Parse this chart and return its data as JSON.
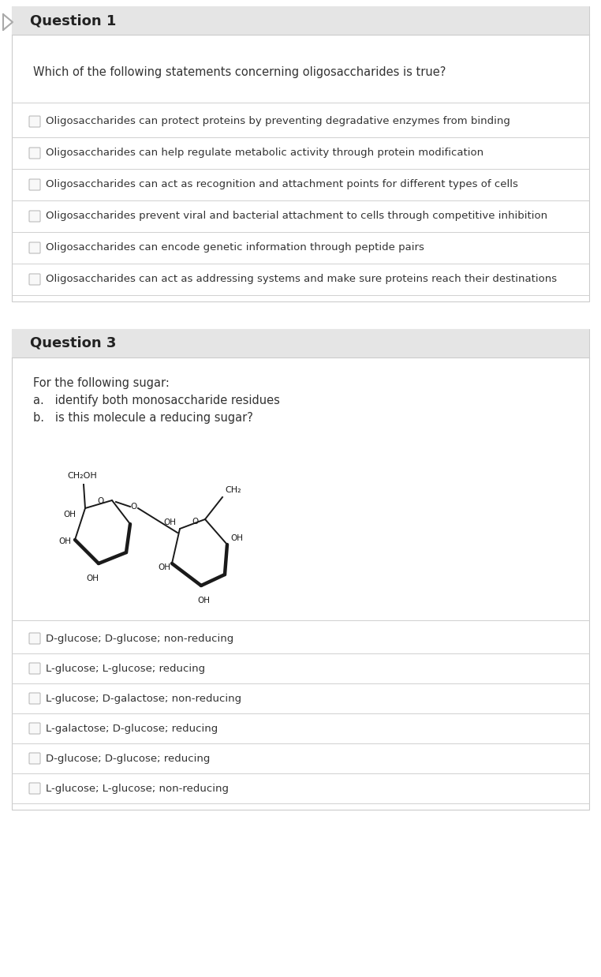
{
  "bg_color": "#ffffff",
  "header_bg": "#e8e8e8",
  "border_color": "#cccccc",
  "text_color": "#2c2c2c",
  "question1": {
    "title": "Question 1",
    "prompt": "Which of the following statements concerning oligosaccharides is true?",
    "options": [
      "Oligosaccharides can protect proteins by preventing degradative enzymes from binding",
      "Oligosaccharides can help regulate metabolic activity through protein modification",
      "Oligosaccharides can act as recognition and attachment points for different types of cells",
      "Oligosaccharides prevent viral and bacterial attachment to cells through competitive inhibition",
      "Oligosaccharides can encode genetic information through peptide pairs",
      "Oligosaccharides can act as addressing systems and make sure proteins reach their destinations"
    ]
  },
  "question3": {
    "title": "Question 3",
    "prompt_lines": [
      "For the following sugar:",
      "a.   identify both monosaccharide residues",
      "b.   is this molecule a reducing sugar?"
    ],
    "options": [
      "D-glucose; D-glucose; non-reducing",
      "L-glucose; L-glucose; reducing",
      "L-glucose; D-galactose; non-reducing",
      "L-galactose; D-glucose; reducing",
      "D-glucose; D-glucose; reducing",
      "L-glucose; L-glucose; non-reducing"
    ]
  }
}
